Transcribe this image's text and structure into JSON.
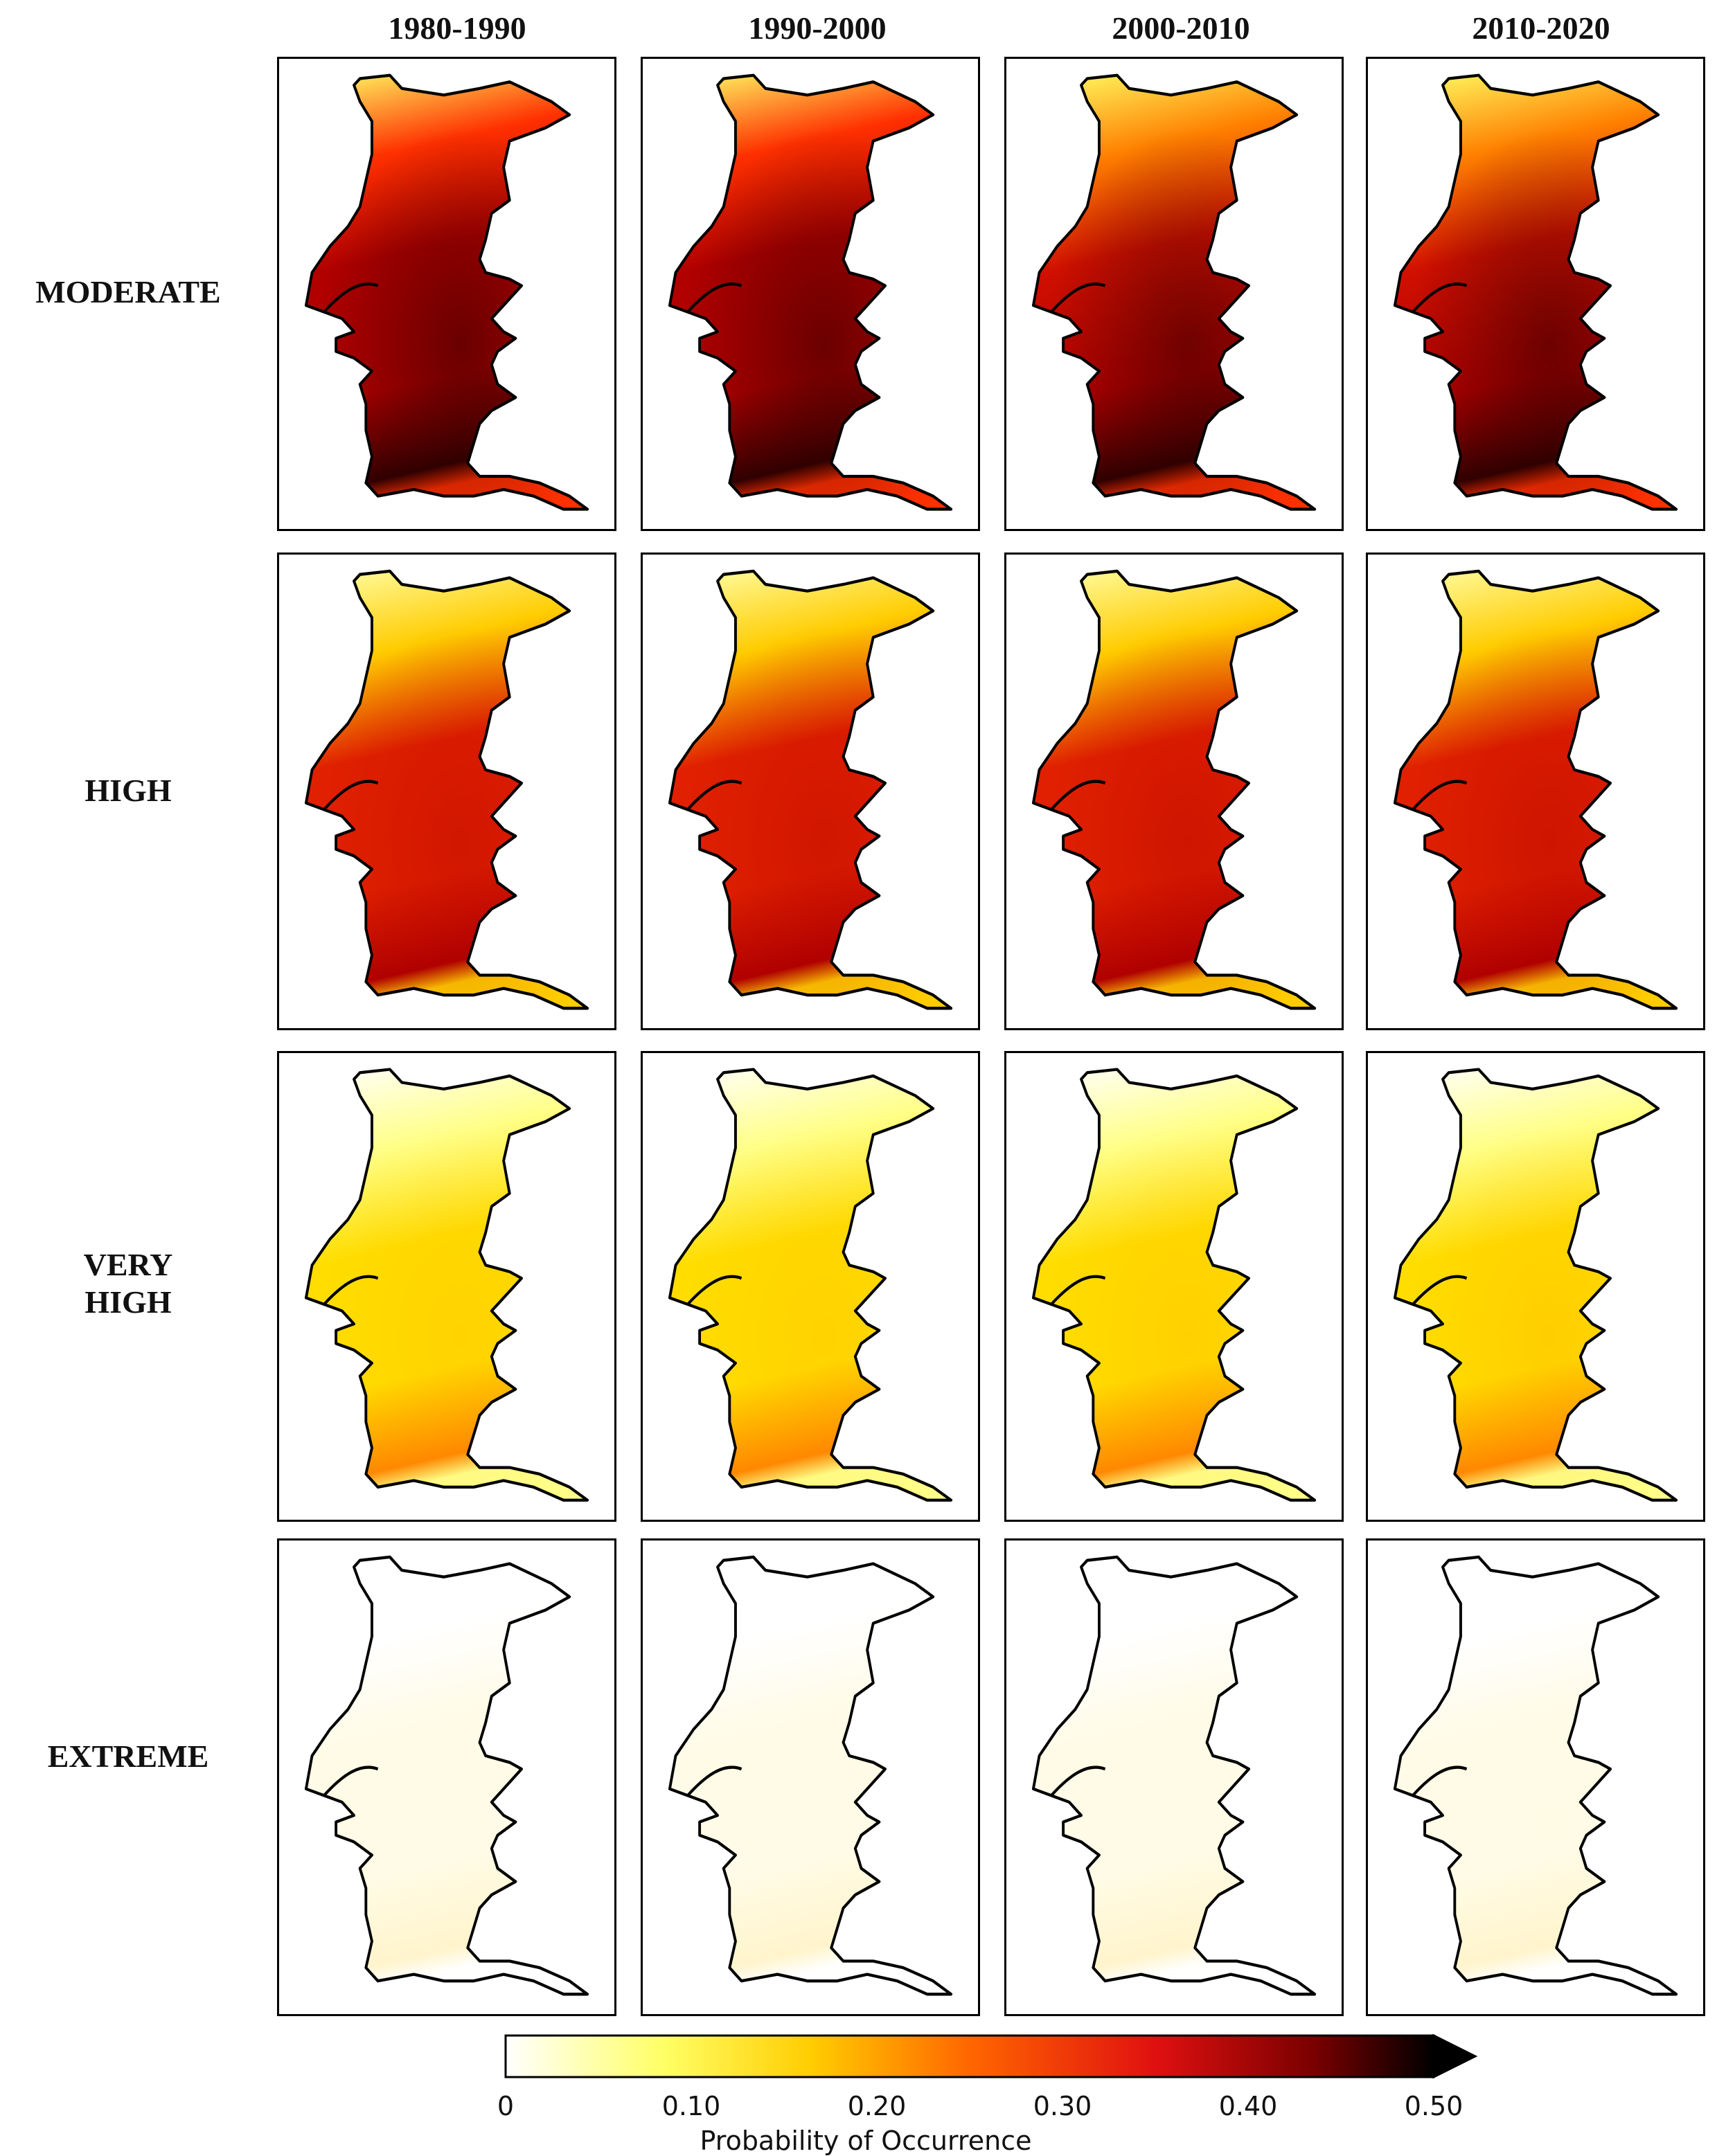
{
  "columns": [
    "1980-1990",
    "1990-2000",
    "2000-2010",
    "2010-2020"
  ],
  "rows": [
    {
      "label_lines": [
        "MODERATE"
      ],
      "intensity": [
        0.92,
        0.9,
        0.88,
        0.93
      ]
    },
    {
      "label_lines": [
        "HIGH"
      ],
      "intensity": [
        0.5,
        0.52,
        0.6,
        0.62
      ]
    },
    {
      "label_lines": [
        "VERY",
        "HIGH"
      ],
      "intensity": [
        0.2,
        0.21,
        0.25,
        0.3
      ]
    },
    {
      "label_lines": [
        "EXTREME"
      ],
      "intensity": [
        0.04,
        0.04,
        0.045,
        0.05
      ]
    }
  ],
  "colorbar": {
    "title": "Probability of Occurrence",
    "ticks": [
      "0",
      "0.10",
      "0.20",
      "0.30",
      "0.40",
      "0.50"
    ],
    "min": 0,
    "max": 0.5,
    "extend": "max",
    "colormap": "hot_r",
    "colors": [
      "#ffffff",
      "#ffff66",
      "#ffcc00",
      "#ff6600",
      "#e01010",
      "#7a0000",
      "#000000"
    ]
  },
  "map_region": "Portugal (mainland)"
}
